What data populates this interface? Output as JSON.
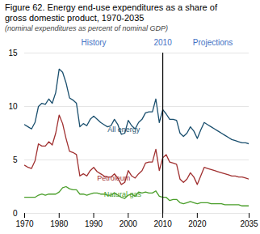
{
  "chart_data": {
    "type": "line",
    "title": [
      "Figure 62. Energy end-use expenditures as a share of",
      "gross domestic product, 1970-2035"
    ],
    "subtitle": "(nominal expenditures  as percent  of nominal GDP)",
    "x": [
      1970,
      1971,
      1972,
      1973,
      1974,
      1975,
      1976,
      1977,
      1978,
      1979,
      1980,
      1981,
      1982,
      1983,
      1984,
      1985,
      1986,
      1987,
      1988,
      1989,
      1990,
      1991,
      1992,
      1993,
      1994,
      1995,
      1996,
      1997,
      1998,
      1999,
      2000,
      2001,
      2002,
      2003,
      2004,
      2005,
      2006,
      2007,
      2008,
      2009,
      2010,
      2011,
      2012,
      2013,
      2014,
      2015,
      2016,
      2017,
      2018,
      2019,
      2020,
      2021,
      2022,
      2023,
      2024,
      2025,
      2026,
      2027,
      2028,
      2029,
      2030,
      2031,
      2032,
      2033,
      2034,
      2035
    ],
    "series": [
      {
        "name": "All energy",
        "color": "#1a4f6e",
        "values": [
          8.3,
          8.1,
          7.9,
          8.5,
          10.0,
          10.3,
          10.2,
          10.7,
          10.3,
          11.3,
          13.5,
          13.2,
          12.2,
          10.8,
          10.6,
          10.3,
          8.1,
          8.4,
          8.2,
          8.8,
          9.1,
          8.8,
          8.5,
          8.3,
          8.1,
          8.2,
          8.8,
          8.3,
          7.4,
          7.5,
          8.7,
          8.2,
          7.9,
          8.5,
          8.8,
          9.4,
          9.5,
          9.5,
          10.7,
          8.5,
          9.7,
          9.3,
          8.8,
          8.8,
          8.7,
          7.5,
          7.2,
          7.5,
          8.1,
          7.7,
          7.0,
          7.8,
          8.5,
          8.3,
          8.1,
          7.9,
          7.7,
          7.5,
          7.3,
          7.1,
          6.9,
          6.8,
          6.7,
          6.6,
          6.6,
          6.5
        ]
      },
      {
        "name": "Petroleum",
        "color": "#a03030",
        "values": [
          4.5,
          4.3,
          4.2,
          4.9,
          6.5,
          6.3,
          6.3,
          6.7,
          6.4,
          7.5,
          9.2,
          8.4,
          7.0,
          5.8,
          5.7,
          5.5,
          3.5,
          3.7,
          3.5,
          4.0,
          4.3,
          3.9,
          3.7,
          3.5,
          3.4,
          3.4,
          3.7,
          3.3,
          2.7,
          2.9,
          4.0,
          3.5,
          3.3,
          3.7,
          4.0,
          4.7,
          4.8,
          4.8,
          6.0,
          4.0,
          5.2,
          5.5,
          4.8,
          4.7,
          4.6,
          3.2,
          2.9,
          3.2,
          3.8,
          3.4,
          2.7,
          3.5,
          4.3,
          4.2,
          4.1,
          4.0,
          3.9,
          3.8,
          3.7,
          3.6,
          3.5,
          3.5,
          3.4,
          3.4,
          3.3,
          3.2
        ]
      },
      {
        "name": "Natural gas",
        "color": "#4a9e2a",
        "values": [
          1.5,
          1.5,
          1.5,
          1.5,
          1.7,
          1.8,
          1.7,
          1.8,
          1.8,
          1.8,
          2.0,
          2.4,
          2.5,
          2.3,
          2.2,
          2.2,
          1.8,
          1.8,
          1.7,
          1.8,
          1.9,
          1.9,
          1.8,
          1.8,
          1.7,
          1.7,
          1.9,
          1.7,
          1.5,
          1.4,
          1.7,
          1.8,
          1.6,
          2.0,
          1.9,
          2.0,
          1.9,
          1.9,
          2.1,
          1.6,
          1.5,
          1.5,
          1.2,
          1.3,
          1.3,
          1.0,
          0.9,
          1.0,
          1.1,
          1.0,
          0.9,
          1.0,
          1.0,
          1.0,
          0.9,
          0.9,
          0.9,
          0.9,
          0.8,
          0.8,
          0.8,
          0.8,
          0.8,
          0.7,
          0.7,
          0.7
        ]
      }
    ],
    "annotations": [
      {
        "text": "All energy",
        "x": 1994,
        "y": 7.6,
        "color": "#1a4f6e"
      },
      {
        "text": "Petroleum",
        "x": 1991,
        "y": 3.05,
        "color": "#a03030"
      },
      {
        "text": "Natural gas",
        "x": 1993,
        "y": 1.55,
        "color": "#4a9e2a"
      }
    ],
    "divider": {
      "x": 2010,
      "color": "#000000",
      "label": "2010",
      "left_label": "History",
      "right_label": "Projections",
      "label_color": "#4472c4"
    },
    "xlim": [
      1970,
      2035
    ],
    "xticks": [
      1970,
      1980,
      1990,
      2000,
      2010,
      2020,
      2035
    ],
    "ylim": [
      0,
      15
    ],
    "yticks": [
      0,
      5,
      10,
      15
    ],
    "grid": true
  }
}
